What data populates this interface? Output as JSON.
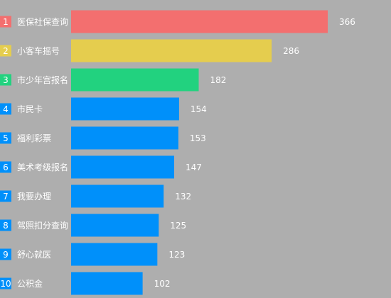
{
  "chart_data": {
    "type": "bar",
    "orientation": "horizontal",
    "ranks": [
      "1",
      "2",
      "3",
      "4",
      "5",
      "6",
      "7",
      "8",
      "9",
      "10"
    ],
    "categories": [
      "医保社保查询",
      "小客车摇号",
      "市少年宫报名",
      "市民卡",
      "福利彩票",
      "美术考级报名",
      "我要办理",
      "驾照扣分查询",
      "舒心就医",
      "公积金"
    ],
    "values": [
      366,
      286,
      182,
      154,
      153,
      147,
      132,
      125,
      123,
      102
    ],
    "value_labels": [
      "366",
      "286",
      "182",
      "154",
      "153",
      "147",
      "132",
      "125",
      "123",
      "102"
    ],
    "title": "",
    "xlabel": "",
    "ylabel": "",
    "xlim": [
      0,
      366
    ],
    "grid": false,
    "legend": "none",
    "colors": {
      "background": "#aeaeae",
      "bars": [
        "#f36f6f",
        "#e5cd4e",
        "#22d27f",
        "#0090fa",
        "#0090fa",
        "#0090fa",
        "#0090fa",
        "#0090fa",
        "#0090fa",
        "#0090fa"
      ],
      "label_text": "#ffffff"
    }
  }
}
